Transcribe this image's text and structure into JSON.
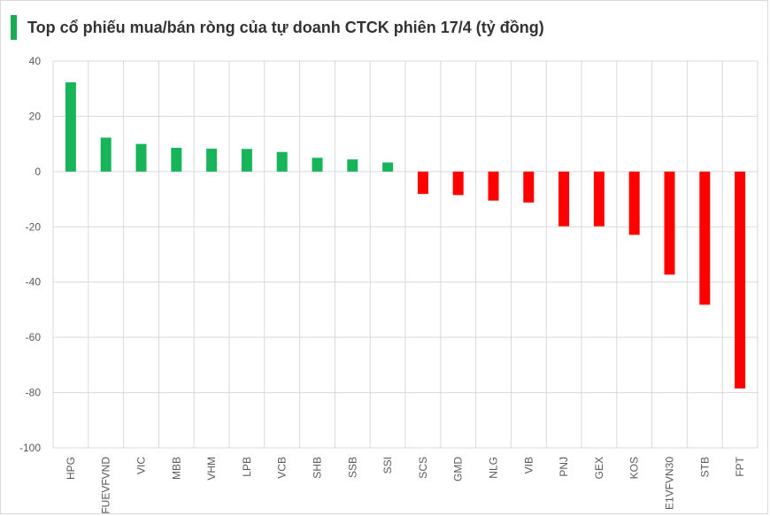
{
  "title": "Top cổ phiếu mua/bán ròng của tự doanh CTCK phiên 17/4 (tỷ đồng)",
  "colors": {
    "title_accent": "#1aac55",
    "positive": "#17b45a",
    "negative": "#ff0000",
    "grid": "#d9d9d9",
    "axis_text": "#595959"
  },
  "chart_data": {
    "type": "bar",
    "title": "Top cổ phiếu mua/bán ròng của tự doanh CTCK phiên 17/4 (tỷ đồng)",
    "xlabel": "",
    "ylabel": "",
    "ylim": [
      -100,
      40
    ],
    "yticks": [
      "40",
      "20",
      "0",
      "-20",
      "-40",
      "-60",
      "-80",
      "-100"
    ],
    "grid": true,
    "legend": "none",
    "categories": [
      "HPG",
      "FUEVFVND",
      "VIC",
      "MBB",
      "VHM",
      "LPB",
      "VCB",
      "SHB",
      "SSB",
      "SSI",
      "SCS",
      "GMD",
      "NLG",
      "VIB",
      "PNJ",
      "GEX",
      "KOS",
      "E1VFVN30",
      "STB",
      "FPT"
    ],
    "values": [
      32.3,
      12.3,
      10.0,
      8.6,
      8.3,
      8.2,
      7.1,
      5.0,
      4.4,
      3.3,
      -8.1,
      -8.5,
      -10.5,
      -11.2,
      -19.8,
      -19.8,
      -22.9,
      -37.3,
      -48.2,
      -78.5
    ]
  }
}
